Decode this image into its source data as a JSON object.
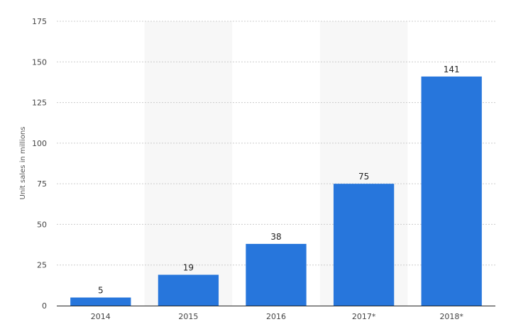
{
  "chart_data": {
    "type": "bar",
    "categories": [
      "2014",
      "2015",
      "2016",
      "2017*",
      "2018*"
    ],
    "values": [
      5,
      19,
      38,
      75,
      141
    ],
    "value_labels": [
      "5",
      "19",
      "38",
      "75",
      "141"
    ],
    "xlabel": "",
    "ylabel": "Unit sales in millions",
    "ylim": [
      0,
      175
    ],
    "yticks": [
      0,
      25,
      50,
      75,
      100,
      125,
      150,
      175
    ],
    "ytick_labels": [
      "0",
      "25",
      "50",
      "75",
      "100",
      "125",
      "150",
      "175"
    ],
    "grid": true,
    "alternating_column_shading": true,
    "bar_color": "#2776dc",
    "grid_color": "#cccccc",
    "shade_color": "#f7f7f7"
  }
}
